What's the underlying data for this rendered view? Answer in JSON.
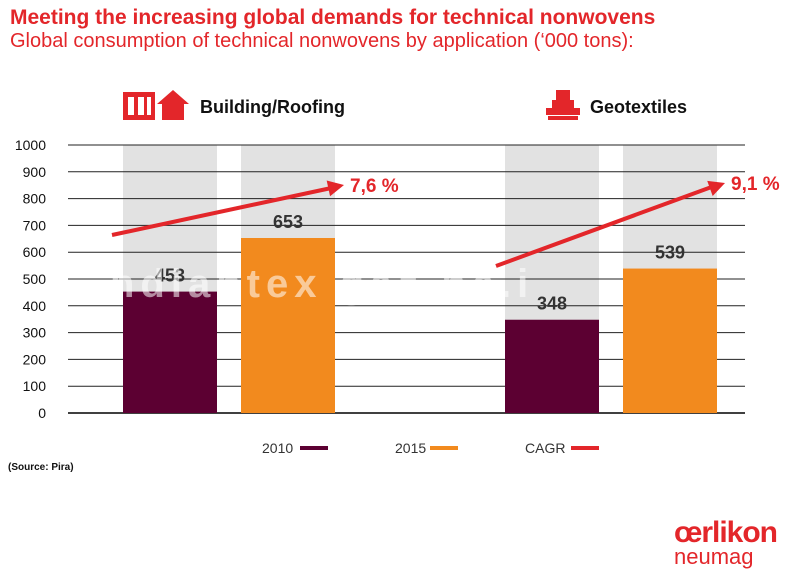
{
  "title": "Meeting the increasing global demands for technical nonwovens",
  "subtitle": "Global consumption of technical nonwovens by application (‘000 tons):",
  "source": "(Source: Pira)",
  "logo": {
    "brand": "œrlikon",
    "sub": "neumag"
  },
  "watermark": "ndiantex       gaz ne.i",
  "colors": {
    "s2010": "#5c0032",
    "s2015": "#f28a1e",
    "cagr": "#e3262a",
    "background_bar": "#e2e2e2",
    "title": "#e3262a"
  },
  "chart_data": {
    "type": "bar",
    "ylim": [
      0,
      1000
    ],
    "yticks": [
      0,
      100,
      200,
      300,
      400,
      500,
      600,
      700,
      800,
      900,
      1000
    ],
    "groups": [
      {
        "name": "Building/Roofing",
        "icon": "building-roof-icon",
        "values": {
          "2010": 453,
          "2015": 653
        },
        "cagr": "7,6 %"
      },
      {
        "name": "Geotextiles",
        "icon": "geotextile-machine-icon",
        "values": {
          "2010": 348,
          "2015": 539
        },
        "cagr": "9,1 %"
      }
    ],
    "series": [
      {
        "name": "2010",
        "key": "2010"
      },
      {
        "name": "2015",
        "key": "2015"
      }
    ],
    "legend": {
      "items": [
        "2010",
        "2015",
        "CAGR"
      ],
      "placement": "bottom"
    }
  }
}
